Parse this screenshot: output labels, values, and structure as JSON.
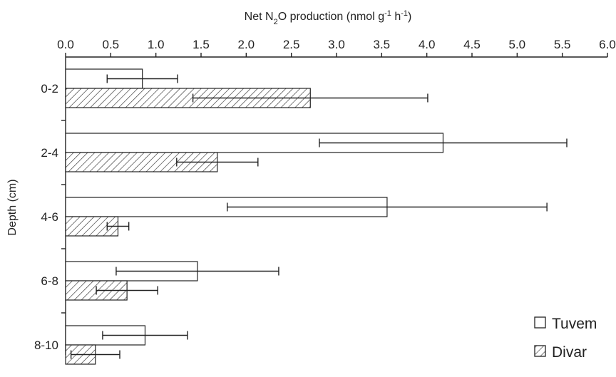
{
  "chart_data": {
    "type": "bar",
    "orientation": "horizontal",
    "title": "",
    "xlabel": {
      "parts": [
        {
          "text": "Net N",
          "sup": false,
          "sub": false
        },
        {
          "text": "2",
          "sub": true,
          "sup": false
        },
        {
          "text": "O production (nmol g",
          "sup": false,
          "sub": false
        },
        {
          "text": "-1",
          "sup": true,
          "sub": false
        },
        {
          "text": " h",
          "sup": false,
          "sub": false
        },
        {
          "text": "-1",
          "sup": true,
          "sub": false
        },
        {
          "text": ")",
          "sup": false,
          "sub": false
        }
      ]
    },
    "ylabel": "Depth (cm)",
    "categories": [
      "0-2",
      "2-4",
      "4-6",
      "6-8",
      "8-10"
    ],
    "xlim": [
      0,
      6
    ],
    "x_ticks": [
      0.0,
      0.5,
      1.0,
      1.5,
      2.0,
      2.5,
      3.0,
      3.5,
      4.0,
      4.5,
      5.0,
      5.5,
      6.0
    ],
    "x_tick_labels": [
      "0.0",
      "0.5",
      "1.0",
      "1.5",
      "2.0",
      "2.5",
      "3.0",
      "3.5",
      "4.0",
      "4.5",
      "5.0",
      "5.5",
      "6.0"
    ],
    "x_axis_position": "top",
    "grid": false,
    "legend_position": "bottom-right",
    "series": [
      {
        "name": "Tuvem",
        "fill": "#ffffff",
        "pattern": "none",
        "values": [
          0.85,
          4.18,
          3.56,
          1.46,
          0.88
        ],
        "error": [
          0.39,
          1.37,
          1.77,
          0.9,
          0.47
        ]
      },
      {
        "name": "Divar",
        "fill": "#ffffff",
        "pattern": "diagonal-hatch",
        "values": [
          2.71,
          1.68,
          0.58,
          0.68,
          0.33
        ],
        "error": [
          1.3,
          0.45,
          0.12,
          0.34,
          0.27
        ]
      }
    ],
    "colors": {
      "stroke": "#222222",
      "hatch": "#333333",
      "background": "#ffffff"
    }
  }
}
